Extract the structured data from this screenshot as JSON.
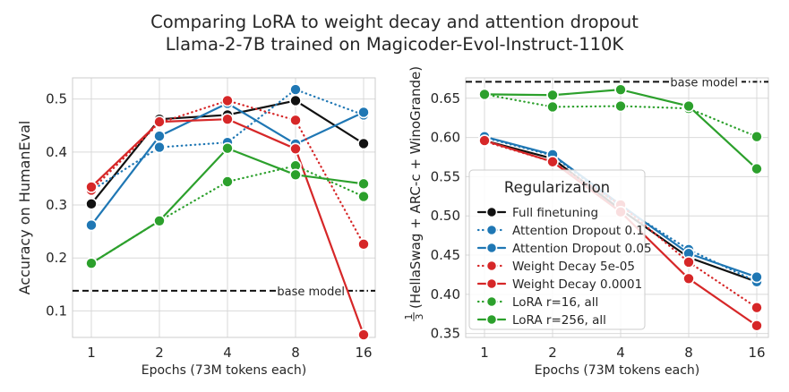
{
  "figure": {
    "title_line1": "Comparing LoRA to weight decay and attention dropout",
    "title_line2": "Llama-2-7B trained on Magicoder-Evol-Instruct-110K"
  },
  "colors": {
    "black": "#111111",
    "blue": "#1f77b4",
    "red": "#d62728",
    "green": "#2ca02c",
    "grid": "#d9d9d9",
    "frame": "#cccccc"
  },
  "chart_data": [
    {
      "type": "line",
      "title": "",
      "xlabel": "Epochs (73M tokens each)",
      "ylabel": "Accuracy on HumanEval",
      "x": [
        1,
        2,
        4,
        8,
        16
      ],
      "x_tick_labels": [
        "1",
        "2",
        "4",
        "8",
        "16"
      ],
      "ylim": [
        0.05,
        0.54
      ],
      "y_ticks": [
        0.1,
        0.2,
        0.3,
        0.4,
        0.5
      ],
      "y_tick_labels": [
        "0.1",
        "0.2",
        "0.3",
        "0.4",
        "0.5"
      ],
      "baseline": {
        "value": 0.138,
        "label": "base model"
      },
      "series": [
        {
          "name": "Full finetuning",
          "color": "#111111",
          "dash": "solid",
          "values": [
            0.302,
            0.462,
            0.47,
            0.497,
            0.416
          ]
        },
        {
          "name": "Attention Dropout 0.1",
          "color": "#1f77b4",
          "dash": "dotted",
          "values": [
            0.327,
            0.409,
            0.418,
            0.518,
            0.47
          ]
        },
        {
          "name": "Attention Dropout 0.05",
          "color": "#1f77b4",
          "dash": "solid",
          "values": [
            0.262,
            0.43,
            0.492,
            0.415,
            0.475
          ]
        },
        {
          "name": "Weight Decay 5e-05",
          "color": "#d62728",
          "dash": "dotted",
          "values": [
            0.328,
            0.455,
            0.497,
            0.46,
            0.226
          ]
        },
        {
          "name": "Weight Decay 0.0001",
          "color": "#d62728",
          "dash": "solid",
          "values": [
            0.334,
            0.457,
            0.462,
            0.406,
            0.055
          ]
        },
        {
          "name": "LoRA r=16, all",
          "color": "#2ca02c",
          "dash": "dotted",
          "values": [
            0.19,
            0.27,
            0.344,
            0.374,
            0.316
          ]
        },
        {
          "name": "LoRA r=256, all",
          "color": "#2ca02c",
          "dash": "solid",
          "values": [
            0.19,
            0.27,
            0.407,
            0.357,
            0.34
          ]
        }
      ]
    },
    {
      "type": "line",
      "title": "",
      "xlabel": "Epochs (73M tokens each)",
      "ylabel": "(HellaSwag + ARC-c + WinoGrande)",
      "ylabel_fraction": {
        "num": "1",
        "den": "3"
      },
      "x": [
        1,
        2,
        4,
        8,
        16
      ],
      "x_tick_labels": [
        "1",
        "2",
        "4",
        "8",
        "16"
      ],
      "ylim": [
        0.345,
        0.676
      ],
      "y_ticks": [
        0.35,
        0.4,
        0.45,
        0.5,
        0.55,
        0.6,
        0.65
      ],
      "y_tick_labels": [
        "0.35",
        "0.40",
        "0.45",
        "0.50",
        "0.55",
        "0.60",
        "0.65"
      ],
      "baseline": {
        "value": 0.671,
        "label": "base model"
      },
      "series": [
        {
          "name": "Full finetuning",
          "color": "#111111",
          "dash": "solid",
          "values": [
            0.596,
            0.573,
            0.508,
            0.447,
            0.416
          ]
        },
        {
          "name": "Attention Dropout 0.1",
          "color": "#1f77b4",
          "dash": "dotted",
          "values": [
            0.6,
            0.577,
            0.512,
            0.457,
            0.416
          ]
        },
        {
          "name": "Attention Dropout 0.05",
          "color": "#1f77b4",
          "dash": "solid",
          "values": [
            0.601,
            0.578,
            0.514,
            0.452,
            0.422
          ]
        },
        {
          "name": "Weight Decay 5e-05",
          "color": "#d62728",
          "dash": "dotted",
          "values": [
            0.595,
            0.569,
            0.514,
            0.441,
            0.383
          ]
        },
        {
          "name": "Weight Decay 0.0001",
          "color": "#d62728",
          "dash": "solid",
          "values": [
            0.596,
            0.569,
            0.505,
            0.42,
            0.36
          ]
        },
        {
          "name": "LoRA r=16, all",
          "color": "#2ca02c",
          "dash": "dotted",
          "values": [
            0.655,
            0.639,
            0.64,
            0.637,
            0.601
          ]
        },
        {
          "name": "LoRA r=256, all",
          "color": "#2ca02c",
          "dash": "solid",
          "values": [
            0.655,
            0.654,
            0.661,
            0.64,
            0.56
          ]
        }
      ],
      "legend": {
        "title": "Regularization",
        "placement": "center-left"
      }
    }
  ]
}
